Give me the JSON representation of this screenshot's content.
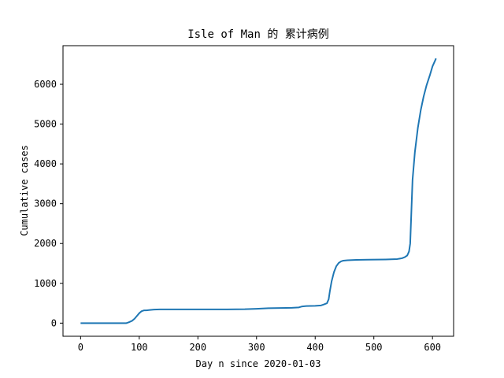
{
  "chart_data": {
    "type": "line",
    "title": "Isle of Man 的 累计病例",
    "xlabel": "Day n since 2020-01-03",
    "ylabel": "Cumulative cases",
    "xlim": [
      -30,
      636
    ],
    "ylim": [
      -330,
      6970
    ],
    "xticks": [
      0,
      100,
      200,
      300,
      400,
      500,
      600
    ],
    "yticks": [
      0,
      1000,
      2000,
      3000,
      4000,
      5000,
      6000
    ],
    "grid": false,
    "line_color": "#1f77b4",
    "series": [
      {
        "x": [
          0,
          20,
          40,
          60,
          78,
          82,
          88,
          92,
          96,
          100,
          104,
          108,
          112,
          118,
          125,
          135,
          150,
          200,
          250,
          280,
          300,
          320,
          340,
          360,
          372,
          378,
          385,
          400,
          410,
          415,
          420,
          423,
          425,
          428,
          432,
          436,
          440,
          444,
          448,
          455,
          470,
          490,
          520,
          540,
          548,
          553,
          557,
          560,
          562,
          564,
          566,
          570,
          575,
          580,
          585,
          590,
          596,
          600,
          604,
          606
        ],
        "values": [
          0,
          0,
          0,
          0,
          0,
          20,
          60,
          110,
          180,
          250,
          300,
          320,
          320,
          330,
          340,
          345,
          345,
          345,
          345,
          350,
          360,
          375,
          380,
          385,
          395,
          420,
          430,
          435,
          445,
          470,
          500,
          600,
          800,
          1050,
          1280,
          1430,
          1510,
          1550,
          1570,
          1580,
          1590,
          1595,
          1600,
          1610,
          1630,
          1660,
          1700,
          1800,
          2000,
          2800,
          3600,
          4300,
          4900,
          5350,
          5700,
          5980,
          6250,
          6450,
          6580,
          6650
        ]
      }
    ]
  }
}
